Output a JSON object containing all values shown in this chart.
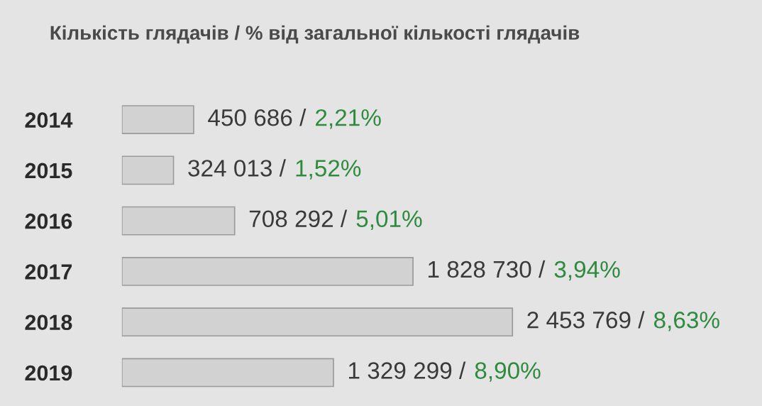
{
  "chart_data": {
    "type": "bar",
    "orientation": "horizontal",
    "title": "Кількість глядачів / % від загальної кількості глядачів",
    "categories": [
      "2014",
      "2015",
      "2016",
      "2017",
      "2018",
      "2019"
    ],
    "values": [
      450686,
      324013,
      708292,
      1828730,
      2453769,
      1329299
    ],
    "color": "#d2d2d2",
    "value_labels": [
      "450 686 / 2,21%",
      "324 013 / 1,52%",
      "708 292 / 5,01%",
      "1 828 730 / 3,94%",
      "2 453 769 / 8,63%",
      "1 329 299 / 8,90%"
    ],
    "grid": false,
    "legend": false
  }
}
